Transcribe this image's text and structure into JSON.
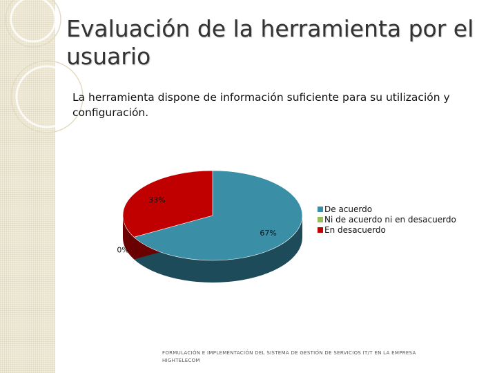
{
  "slide": {
    "title": "Evaluación de la herramienta por el usuario",
    "subtitle": "La herramienta dispone de información suficiente para su utilización y configuración.",
    "footer": "FORMULACIÓN E IMPLEMENTACIÓN DEL SISTEMA DE GESTIÓN DE SERVICIOS IT/T EN LA EMPRESA HIGHTELECOM"
  },
  "chart_data": {
    "type": "pie",
    "categories": [
      "De acuerdo",
      "Ni de acuerdo ni en desacuerdo",
      "En desacuerdo"
    ],
    "values": [
      67,
      0,
      33
    ],
    "data_labels": [
      "67%",
      "0%",
      "33%"
    ],
    "colors": [
      "#3a8ea6",
      "#9bbb59",
      "#c00000"
    ],
    "legend_position": "right",
    "three_d": true
  }
}
